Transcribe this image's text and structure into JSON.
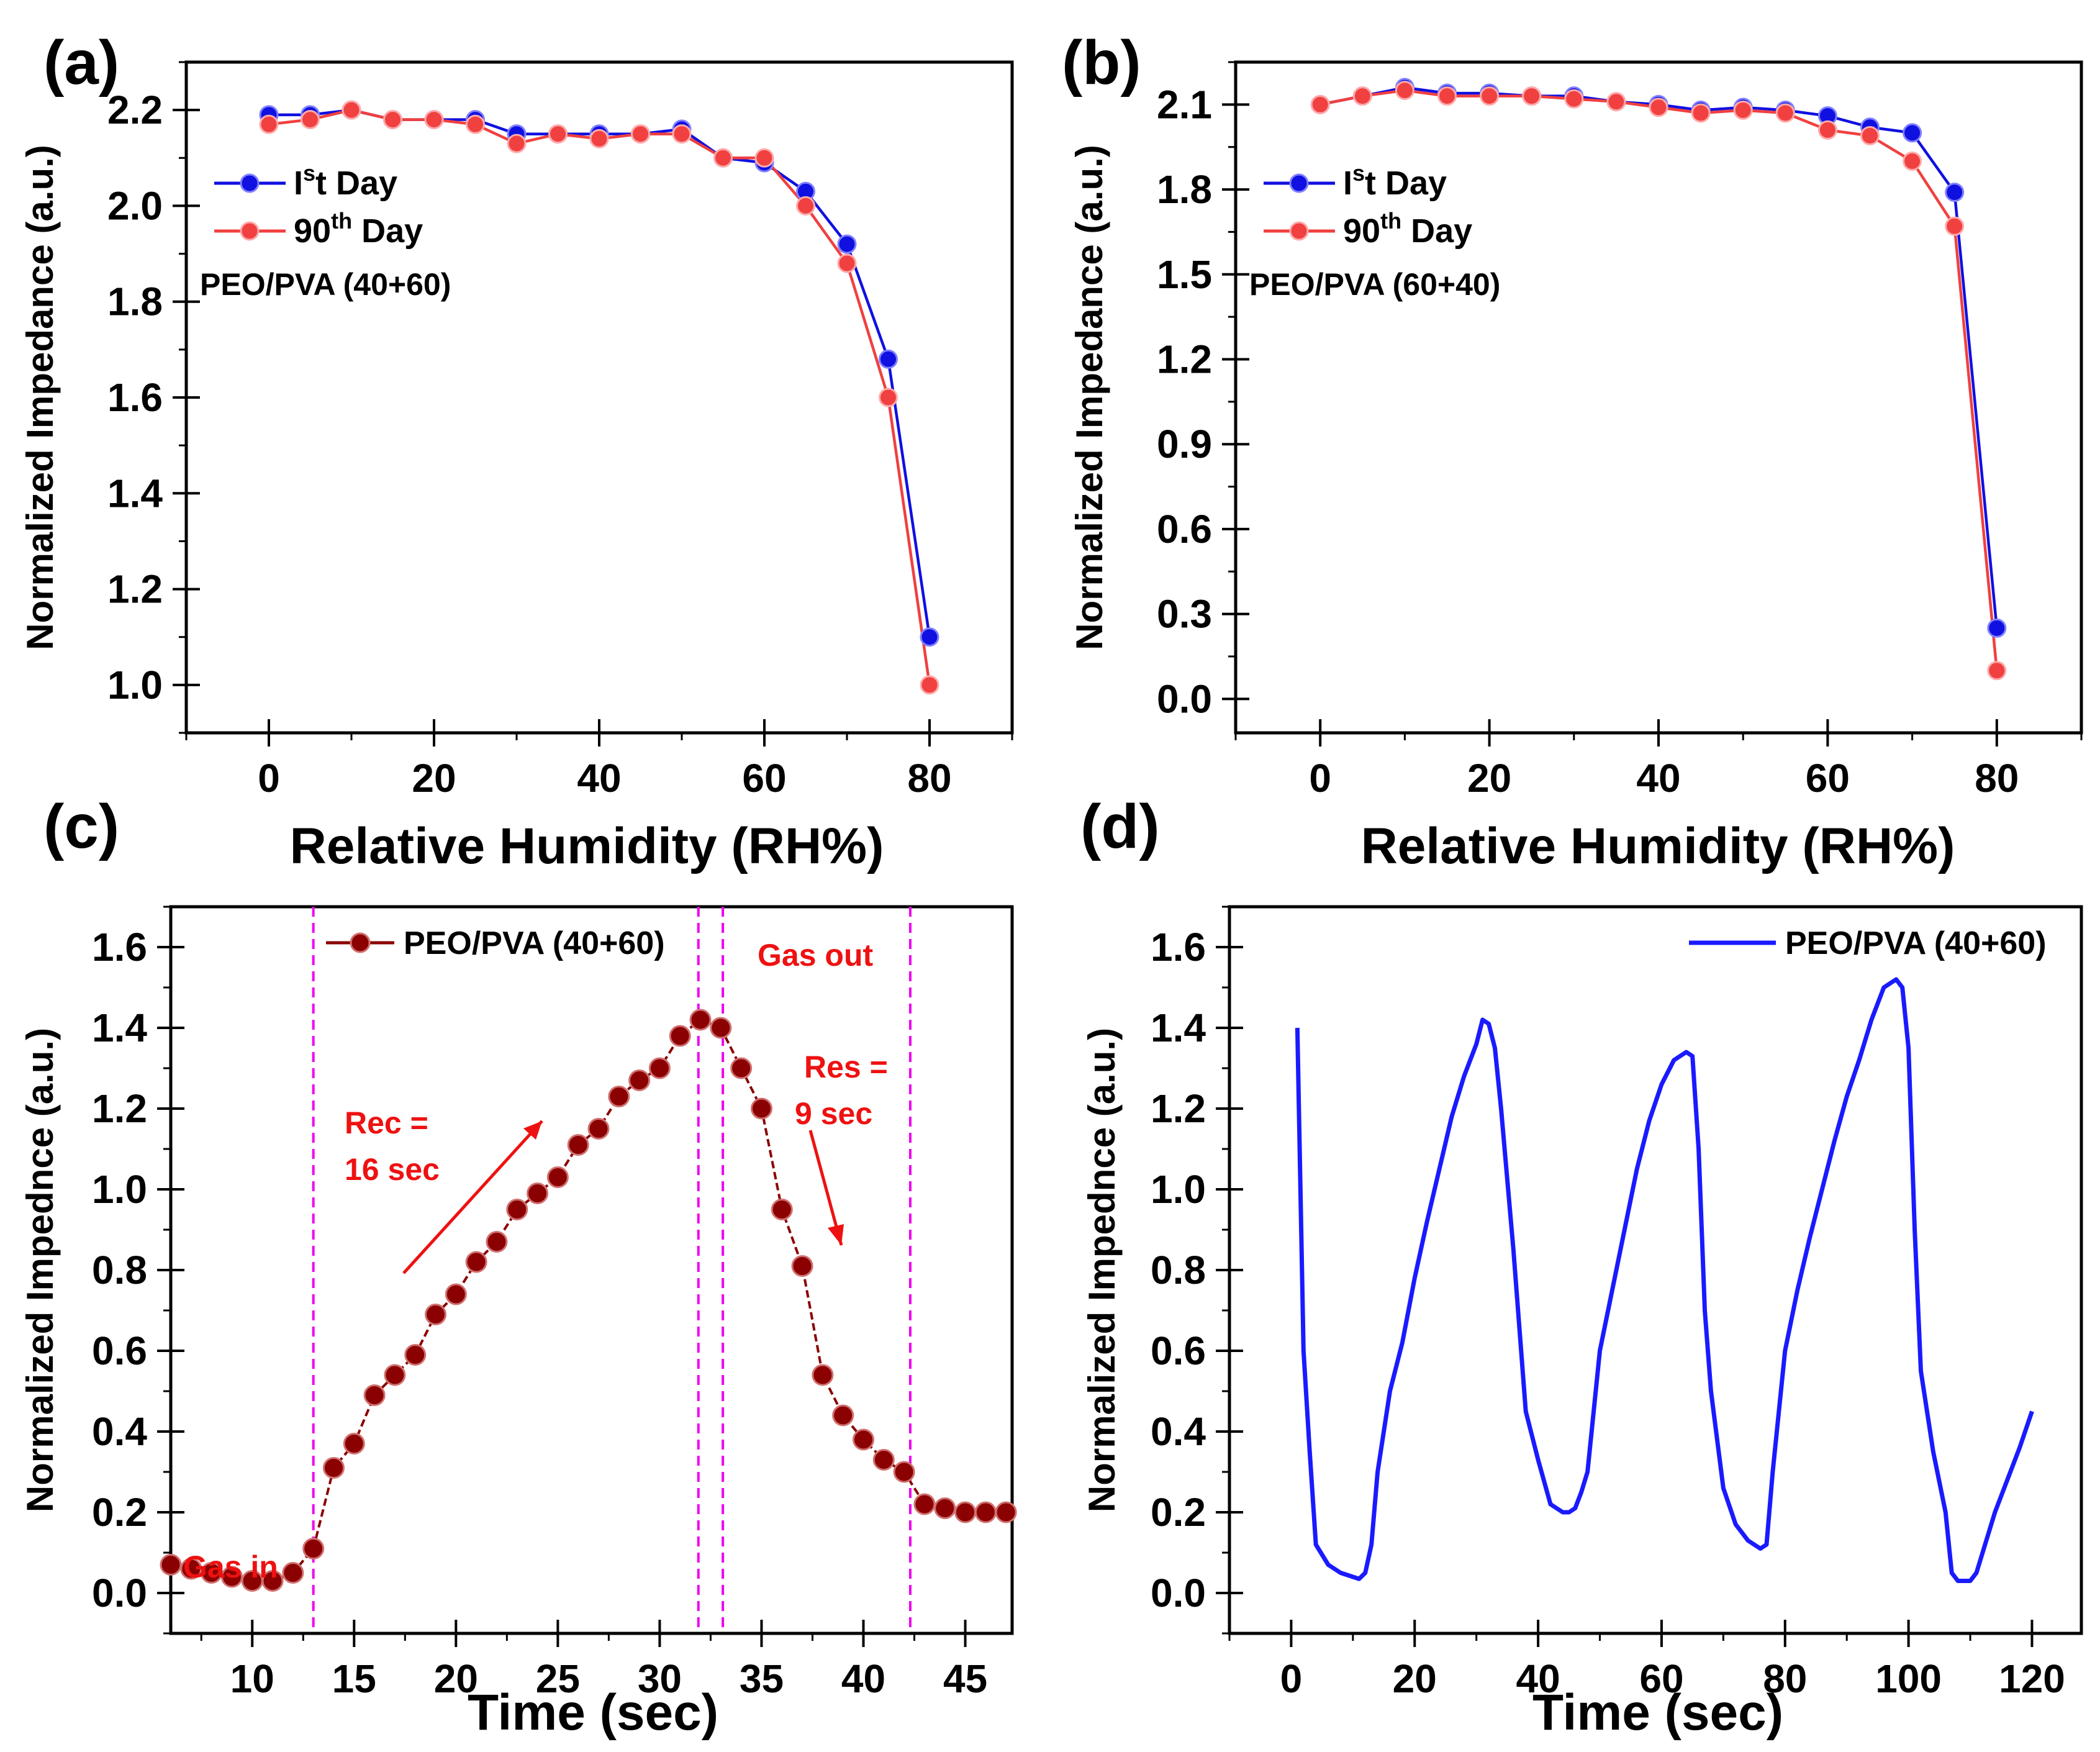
{
  "colors": {
    "series1": "#1010e0",
    "series2": "#f04040",
    "annotation": "#ee1111",
    "marker_c": "#8b0000",
    "vline": "#ee00ee",
    "line_d": "#1a1aff"
  },
  "chart_data": [
    {
      "panel": "(a)",
      "type": "line",
      "xlabel": "Relative Humidity (RH%)",
      "ylabel": "Normalized Impedance (a.u.)",
      "xlim": [
        -10,
        90
      ],
      "ylim": [
        0.9,
        2.3
      ],
      "xticks": [
        0,
        20,
        40,
        60,
        80
      ],
      "yticks": [
        1.0,
        1.2,
        1.4,
        1.6,
        1.8,
        2.0,
        2.2
      ],
      "ytick_decimals": 1,
      "note": "PEO/PVA (40+60)",
      "legend": [
        {
          "main": "I",
          "sup": "s",
          "rest": "t Day"
        },
        {
          "main": "90",
          "sup": "th",
          "rest": " Day"
        }
      ],
      "x": [
        0,
        5,
        10,
        15,
        20,
        25,
        30,
        35,
        40,
        45,
        50,
        55,
        60,
        65,
        70,
        75,
        80
      ],
      "series": [
        {
          "name": "Ist Day",
          "values": [
            2.19,
            2.19,
            2.2,
            2.18,
            2.18,
            2.18,
            2.15,
            2.15,
            2.15,
            2.15,
            2.16,
            2.1,
            2.09,
            2.03,
            1.92,
            1.68,
            1.1
          ]
        },
        {
          "name": "90th Day",
          "values": [
            2.17,
            2.18,
            2.2,
            2.18,
            2.18,
            2.17,
            2.13,
            2.15,
            2.14,
            2.15,
            2.15,
            2.1,
            2.1,
            2.0,
            1.88,
            1.6,
            1.0
          ]
        }
      ]
    },
    {
      "panel": "(b)",
      "type": "line",
      "xlabel": "Relative Humidity (RH%)",
      "ylabel": "Normalized Impedance (a.u.)",
      "xlim": [
        -10,
        90
      ],
      "ylim": [
        -0.12,
        2.25
      ],
      "xticks": [
        0,
        20,
        40,
        60,
        80
      ],
      "yticks": [
        0.0,
        0.3,
        0.6,
        0.9,
        1.2,
        1.5,
        1.8,
        2.1
      ],
      "ytick_decimals": 1,
      "note": "PEO/PVA (60+40)",
      "legend": [
        {
          "main": "I",
          "sup": "s",
          "rest": "t Day"
        },
        {
          "main": "90",
          "sup": "th",
          "rest": " Day"
        }
      ],
      "x": [
        0,
        5,
        10,
        15,
        20,
        25,
        30,
        35,
        40,
        45,
        50,
        55,
        60,
        65,
        70,
        75,
        80
      ],
      "series": [
        {
          "name": "Ist Day",
          "values": [
            2.1,
            2.13,
            2.16,
            2.14,
            2.14,
            2.13,
            2.13,
            2.11,
            2.1,
            2.08,
            2.09,
            2.08,
            2.06,
            2.02,
            2.0,
            1.79,
            0.25
          ]
        },
        {
          "name": "90th Day",
          "values": [
            2.1,
            2.13,
            2.15,
            2.13,
            2.13,
            2.13,
            2.12,
            2.11,
            2.09,
            2.07,
            2.08,
            2.07,
            2.01,
            1.99,
            1.9,
            1.67,
            0.1
          ]
        }
      ]
    },
    {
      "panel": "(c)",
      "type": "line",
      "xlabel": "Time (sec)",
      "ylabel": "Normalized Impednce (a.u.)",
      "xlim": [
        6,
        47.3
      ],
      "ylim": [
        -0.1,
        1.7
      ],
      "xticks": [
        10,
        15,
        20,
        25,
        30,
        35,
        40,
        45
      ],
      "yticks": [
        0.0,
        0.2,
        0.4,
        0.6,
        0.8,
        1.0,
        1.2,
        1.4,
        1.6
      ],
      "ytick_decimals": 1,
      "legend": [
        {
          "main": "PEO/PVA (40+60)"
        }
      ],
      "series": [
        {
          "name": "PEO/PVA (40+60)",
          "x": [
            6,
            7,
            8,
            9,
            10,
            11,
            12,
            13,
            14,
            15,
            16,
            17,
            18,
            19,
            20,
            21,
            22,
            23,
            24,
            25,
            26,
            27,
            28,
            29,
            30,
            31,
            32,
            33,
            34,
            35,
            36,
            37,
            38,
            39,
            40,
            41,
            42,
            43,
            44,
            45,
            46,
            47
          ],
          "values": [
            0.07,
            0.06,
            0.05,
            0.04,
            0.03,
            0.03,
            0.05,
            0.11,
            0.31,
            0.37,
            0.49,
            0.54,
            0.59,
            0.69,
            0.74,
            0.82,
            0.87,
            0.95,
            0.99,
            1.03,
            1.11,
            1.15,
            1.23,
            1.27,
            1.3,
            1.38,
            1.42,
            1.4,
            1.3,
            1.2,
            0.95,
            0.81,
            0.54,
            0.44,
            0.38,
            0.33,
            0.3,
            0.22,
            0.21,
            0.2,
            0.2,
            0.2
          ]
        }
      ],
      "vlines": [
        13,
        31.9,
        33.1,
        42.3
      ],
      "annotations": {
        "gas_in": "Gas in",
        "gas_out": "Gas out",
        "rec_line1": "Rec =",
        "rec_line2": "16 sec",
        "res_line1": "Res =",
        "res_line2": "9 sec"
      }
    },
    {
      "panel": "(d)",
      "type": "line",
      "xlabel": "Time (sec)",
      "ylabel": "Normalized Impednce (a.u.)",
      "xlim": [
        -10,
        128
      ],
      "ylim": [
        -0.1,
        1.7
      ],
      "xticks": [
        0,
        20,
        40,
        60,
        80,
        100,
        120
      ],
      "yticks": [
        0.0,
        0.2,
        0.4,
        0.6,
        0.8,
        1.0,
        1.2,
        1.4,
        1.6
      ],
      "ytick_decimals": 1,
      "legend": [
        {
          "main": "PEO/PVA (40+60)"
        }
      ],
      "series": [
        {
          "name": "PEO/PVA (40+60)",
          "x": [
            1,
            2,
            3,
            4,
            6,
            8,
            10,
            11,
            12,
            13,
            14,
            16,
            18,
            20,
            22,
            24,
            26,
            28,
            30,
            31,
            32,
            33,
            34,
            36,
            38,
            40,
            42,
            43,
            44,
            45,
            46,
            47,
            48,
            49,
            50,
            52,
            54,
            56,
            58,
            60,
            62,
            64,
            65,
            66,
            67,
            68,
            70,
            72,
            74,
            76,
            77,
            78,
            79,
            80,
            82,
            84,
            86,
            88,
            90,
            92,
            94,
            96,
            98,
            99,
            100,
            101,
            102,
            104,
            106,
            107,
            108,
            109,
            110,
            111,
            112,
            114,
            116,
            118,
            120
          ],
          "values": [
            1.4,
            0.6,
            0.35,
            0.12,
            0.07,
            0.05,
            0.04,
            0.035,
            0.05,
            0.12,
            0.3,
            0.5,
            0.62,
            0.78,
            0.92,
            1.05,
            1.18,
            1.28,
            1.36,
            1.42,
            1.41,
            1.35,
            1.2,
            0.85,
            0.45,
            0.33,
            0.22,
            0.21,
            0.2,
            0.2,
            0.21,
            0.25,
            0.3,
            0.45,
            0.6,
            0.75,
            0.9,
            1.05,
            1.17,
            1.26,
            1.32,
            1.34,
            1.33,
            1.1,
            0.7,
            0.5,
            0.26,
            0.17,
            0.13,
            0.11,
            0.12,
            0.3,
            0.45,
            0.6,
            0.75,
            0.88,
            1.0,
            1.12,
            1.23,
            1.32,
            1.42,
            1.5,
            1.52,
            1.5,
            1.35,
            0.9,
            0.55,
            0.35,
            0.2,
            0.05,
            0.03,
            0.03,
            0.03,
            0.05,
            0.1,
            0.2,
            0.28,
            0.36,
            0.45
          ]
        }
      ]
    }
  ]
}
